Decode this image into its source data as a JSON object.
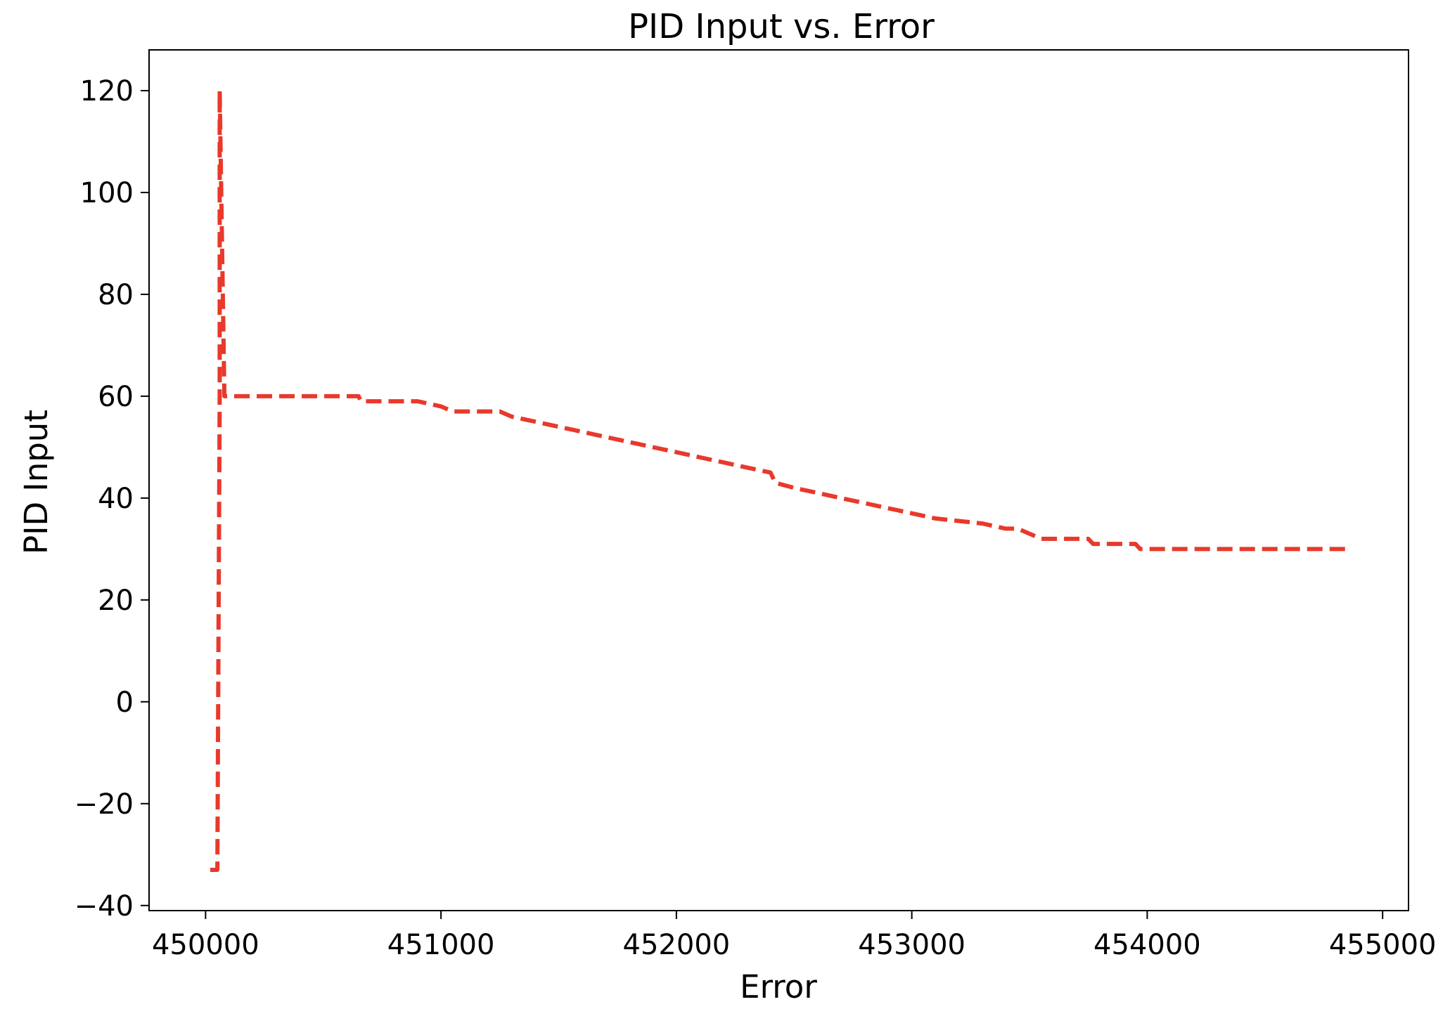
{
  "chart_data": {
    "type": "line",
    "title": "PID Input vs. Error",
    "xlabel": "Error",
    "ylabel": "PID Input",
    "xlim": [
      449760,
      455110
    ],
    "ylim": [
      -41,
      128
    ],
    "xticks": [
      450000,
      451000,
      452000,
      453000,
      454000,
      455000
    ],
    "xtick_labels": [
      "450000",
      "451000",
      "452000",
      "453000",
      "454000",
      "455000"
    ],
    "yticks": [
      -40,
      -20,
      0,
      20,
      40,
      60,
      80,
      100,
      120
    ],
    "ytick_labels": [
      "−40",
      "−20",
      "0",
      "20",
      "40",
      "60",
      "80",
      "100",
      "120"
    ],
    "grid": false,
    "series": [
      {
        "color": "#e8392b",
        "style": "dashed",
        "points": [
          [
            450020,
            -33
          ],
          [
            450050,
            -33
          ],
          [
            450060,
            60
          ],
          [
            450060,
            120
          ],
          [
            450080,
            60
          ],
          [
            450650,
            60
          ],
          [
            450660,
            59
          ],
          [
            450900,
            59
          ],
          [
            451000,
            58
          ],
          [
            451050,
            57
          ],
          [
            451250,
            57
          ],
          [
            451300,
            56
          ],
          [
            451400,
            55
          ],
          [
            451500,
            54
          ],
          [
            451600,
            53
          ],
          [
            451700,
            52
          ],
          [
            451800,
            51
          ],
          [
            451900,
            50
          ],
          [
            452000,
            49
          ],
          [
            452100,
            48
          ],
          [
            452200,
            47
          ],
          [
            452300,
            46
          ],
          [
            452400,
            45
          ],
          [
            452420,
            43
          ],
          [
            452500,
            42
          ],
          [
            452600,
            41
          ],
          [
            452700,
            40
          ],
          [
            452800,
            39
          ],
          [
            452900,
            38
          ],
          [
            453000,
            37
          ],
          [
            453100,
            36
          ],
          [
            453200,
            35.5
          ],
          [
            453300,
            35
          ],
          [
            453400,
            34
          ],
          [
            453450,
            34
          ],
          [
            453500,
            33
          ],
          [
            453550,
            32
          ],
          [
            453750,
            32
          ],
          [
            453770,
            31
          ],
          [
            453950,
            31
          ],
          [
            453970,
            30
          ],
          [
            454850,
            30
          ]
        ]
      }
    ]
  }
}
